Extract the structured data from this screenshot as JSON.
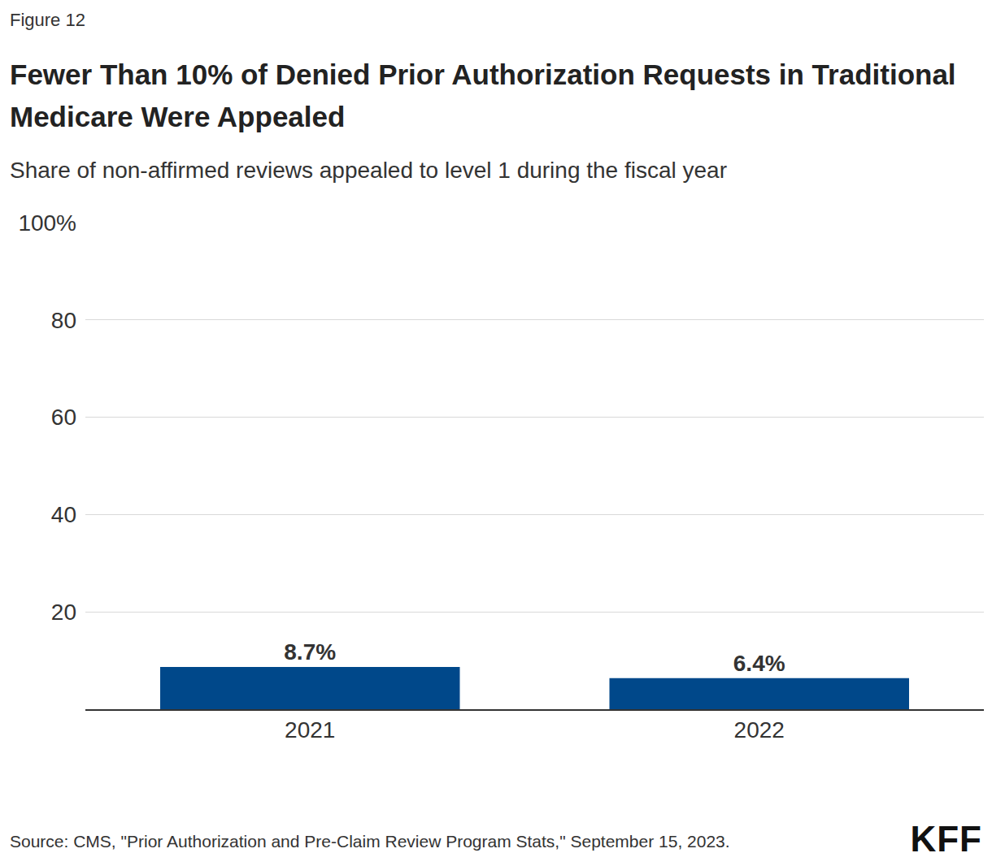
{
  "chart_data": {
    "type": "bar",
    "figure_label": "Figure 12",
    "title": "Fewer Than 10% of Denied Prior Authorization Requests in Traditional Medicare Were Appealed",
    "subtitle": "Share of non-affirmed reviews appealed to level 1 during the fiscal year",
    "categories": [
      "2021",
      "2022"
    ],
    "values": [
      8.7,
      6.4
    ],
    "value_labels": [
      "8.7%",
      "6.4%"
    ],
    "data_labels": true,
    "color": "#00488a",
    "ylim": [
      0,
      100
    ],
    "yticks": [
      20,
      40,
      60,
      80,
      {
        "value": 100,
        "label": "100%"
      }
    ],
    "grid": true,
    "source": "Source: CMS, \"Prior Authorization and Pre-Claim Review Program Stats,\" September 15, 2023.",
    "logo": "KFF"
  }
}
